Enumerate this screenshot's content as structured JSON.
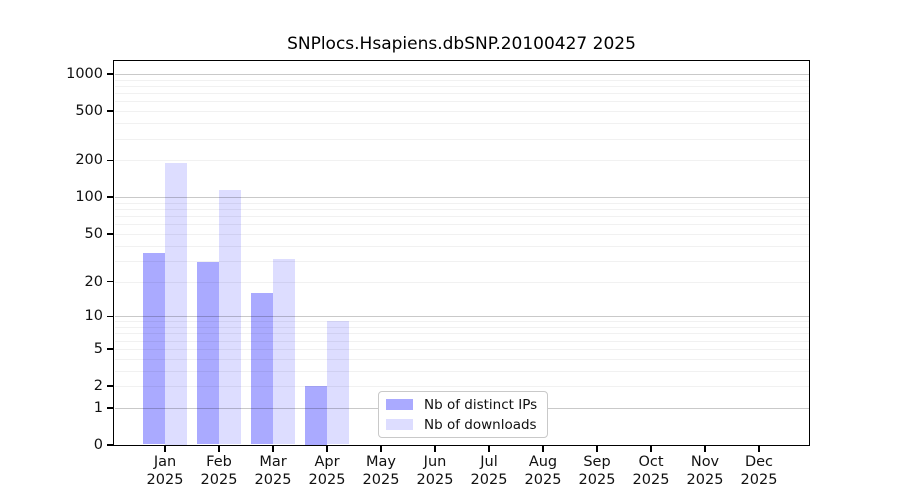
{
  "chart_data": {
    "type": "bar",
    "title": "SNPlocs.Hsapiens.dbSNP.20100427 2025",
    "categories": [
      "Jan",
      "Feb",
      "Mar",
      "Apr",
      "May",
      "Jun",
      "Jul",
      "Aug",
      "Sep",
      "Oct",
      "Nov",
      "Dec"
    ],
    "category_year": "2025",
    "series": [
      {
        "name": "Nb of distinct IPs",
        "color": "#aaaaff",
        "values": [
          35,
          29,
          16,
          2,
          0,
          0,
          0,
          0,
          0,
          0,
          0,
          0
        ]
      },
      {
        "name": "Nb of downloads",
        "color": "#ddddff",
        "values": [
          190,
          115,
          31,
          9,
          0,
          0,
          0,
          0,
          0,
          0,
          0,
          0
        ]
      }
    ],
    "y_axis": {
      "scale": "log1p",
      "ticks": [
        0,
        1,
        2,
        5,
        10,
        20,
        50,
        100,
        200,
        500,
        1000
      ],
      "max_value": 1275
    },
    "grid": {
      "minor_values": [
        2,
        3,
        4,
        5,
        6,
        7,
        8,
        9,
        20,
        30,
        40,
        50,
        60,
        70,
        80,
        90,
        200,
        300,
        400,
        500,
        600,
        700,
        800,
        900
      ],
      "major_values": [
        1,
        10,
        100,
        1000
      ],
      "minor_color": "#ededed",
      "major_color": "#c9c9c9"
    },
    "legend": {
      "position": "inside-bottom-center"
    },
    "xlabel": "",
    "ylabel": "",
    "background": "#ffffff",
    "axis_color": "#000000"
  }
}
